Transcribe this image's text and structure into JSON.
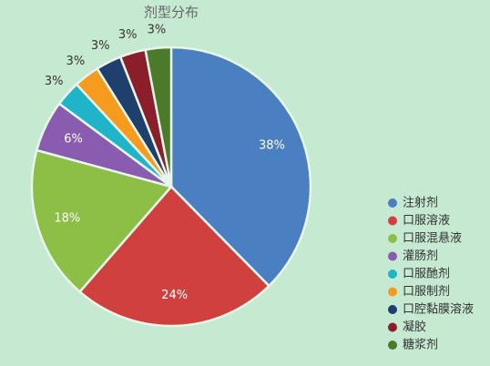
{
  "chart_data": {
    "type": "pie",
    "title": "剂型分布",
    "categories": [
      "注射剂",
      "口服溶液",
      "口服混悬液",
      "灌肠剂",
      "口服酏剂",
      "口服制剂",
      "口腔黏膜溶液",
      "凝胶",
      "糖浆剂"
    ],
    "values": [
      38,
      24,
      18,
      6,
      3,
      3,
      3,
      3,
      3
    ],
    "value_labels": [
      "38%",
      "24%",
      "18%",
      "6%",
      "3%",
      "3%",
      "3%",
      "3%",
      "3%"
    ],
    "colors": [
      "#4a7fc1",
      "#d0403f",
      "#8dbf46",
      "#8a5cb0",
      "#1fb4c8",
      "#f59b1d",
      "#1f3f6d",
      "#8a1f2b",
      "#4b7a2b"
    ],
    "legend": "bottom-right"
  }
}
